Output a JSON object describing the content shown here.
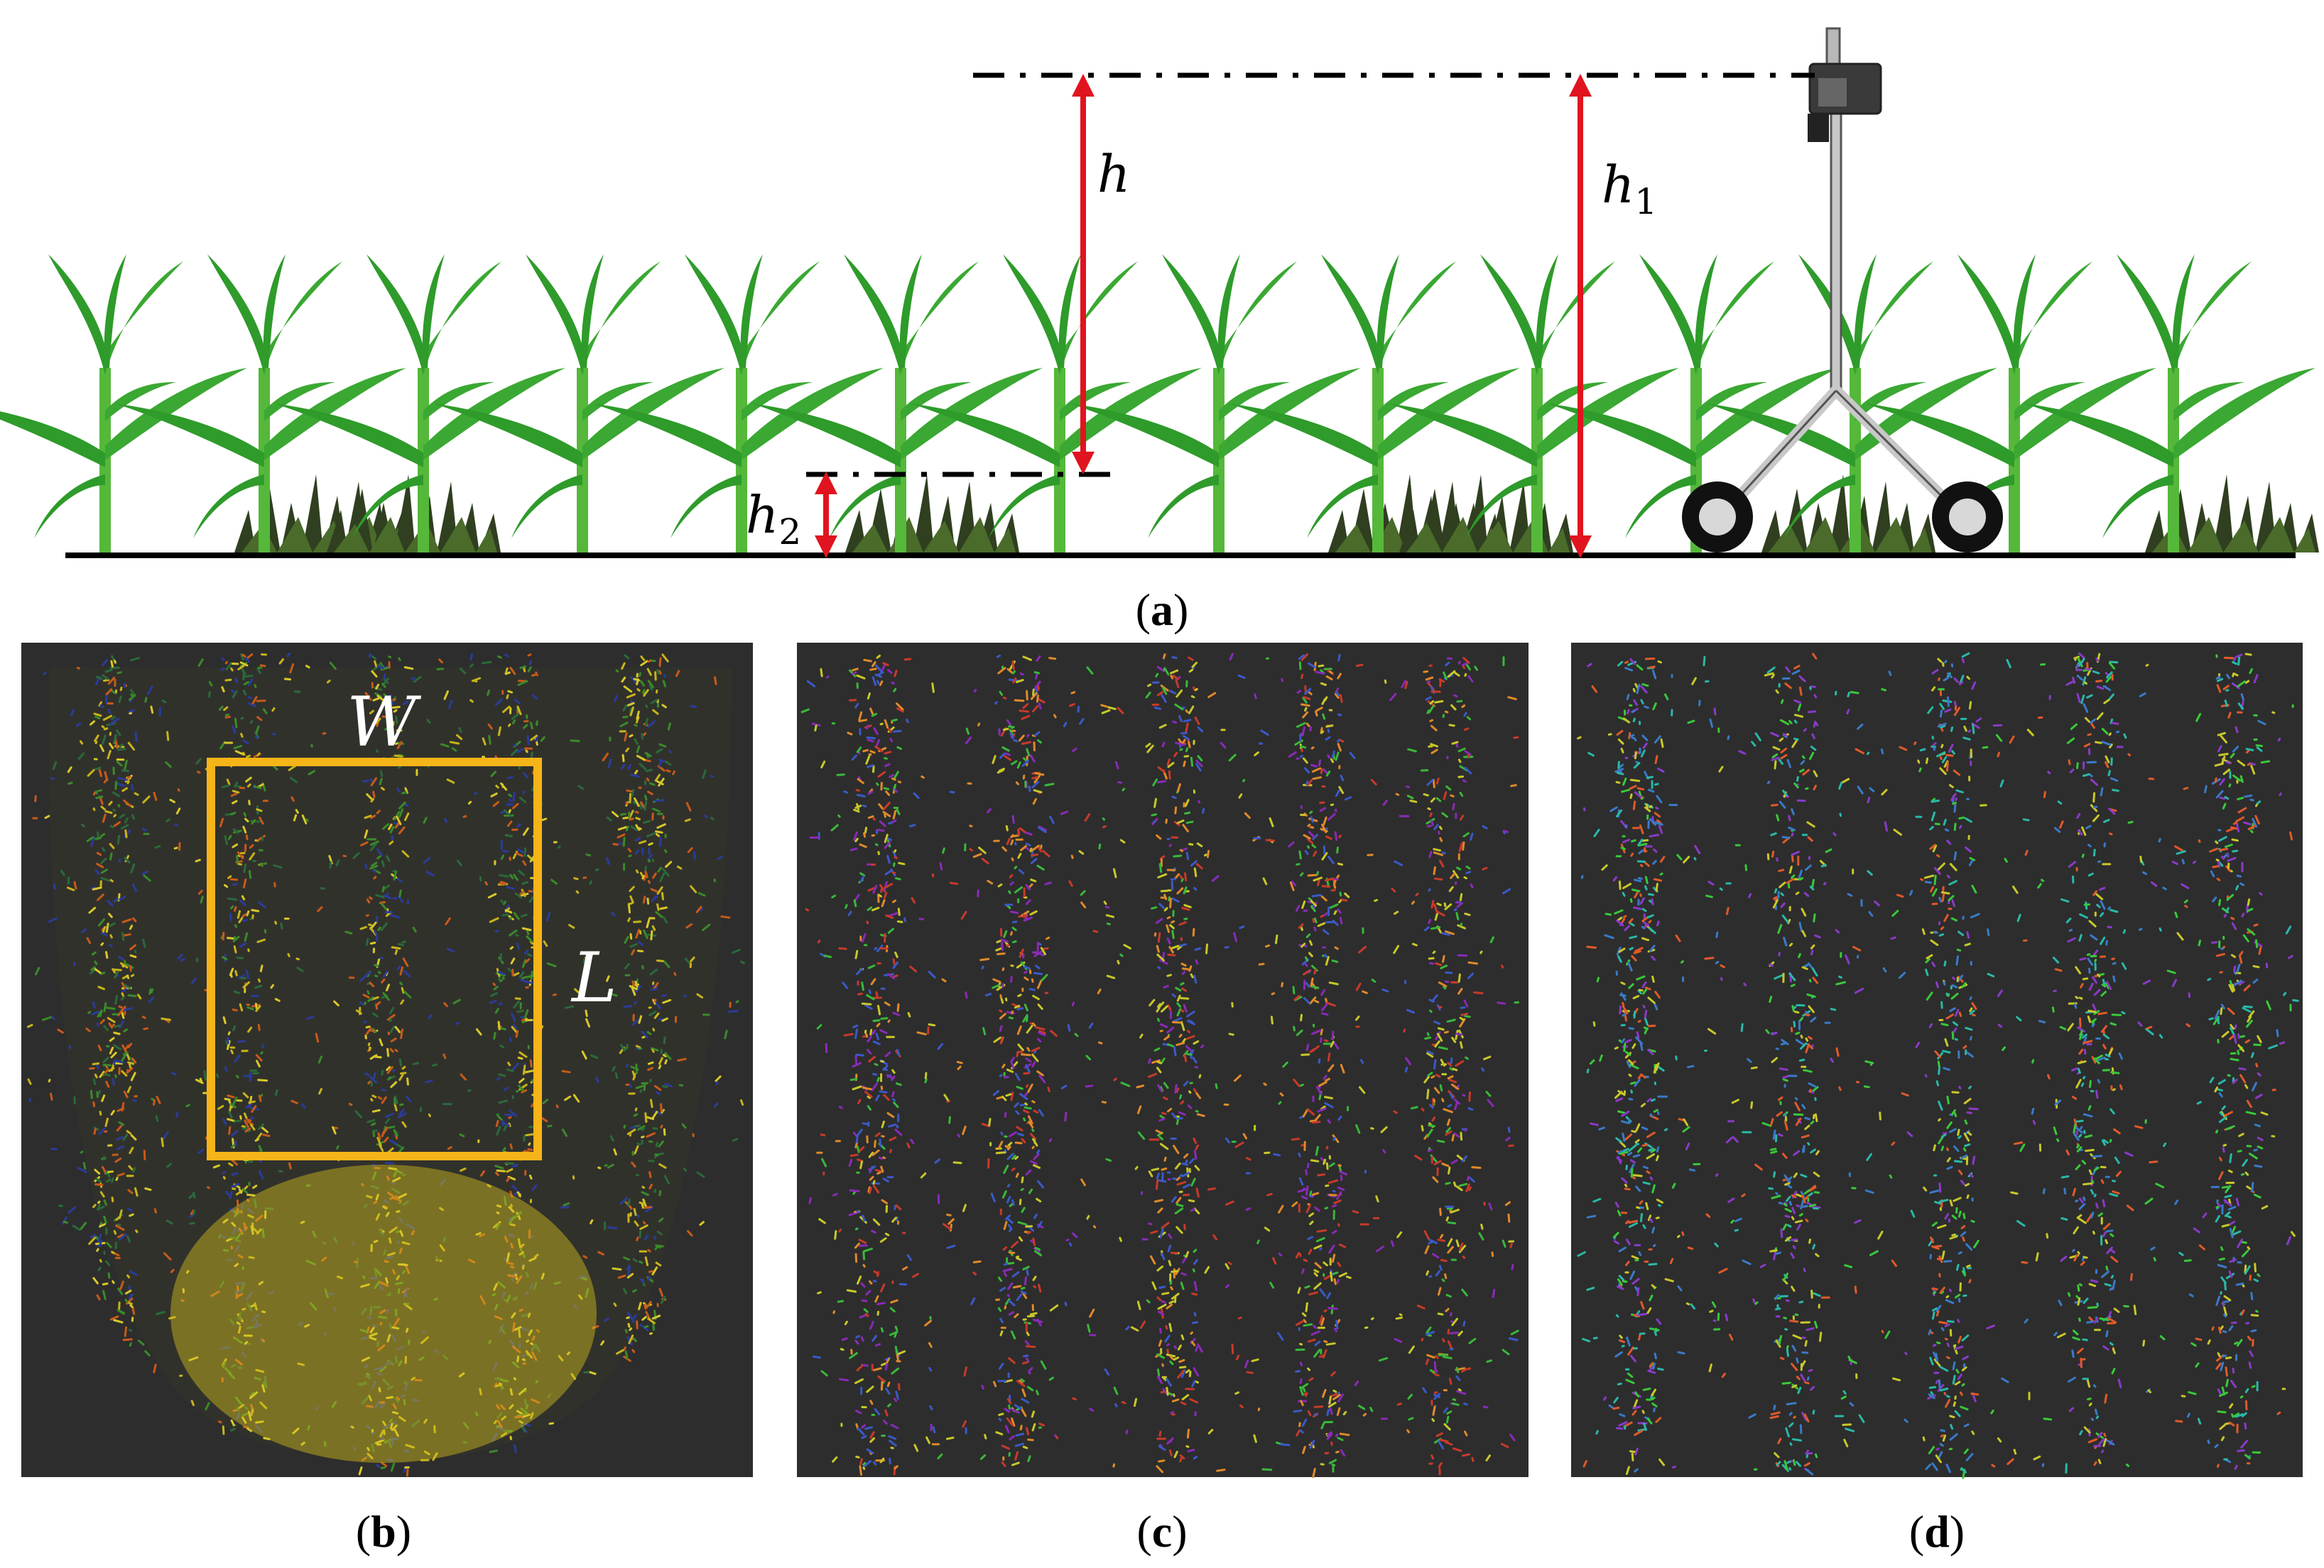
{
  "panels": {
    "a": {
      "caption_open": "(",
      "caption_letter": "a",
      "caption_close": ")",
      "labels": {
        "h": "h",
        "h1_base": "h",
        "h1_sub": "1",
        "h2_base": "h",
        "h2_sub": "2"
      }
    },
    "b": {
      "caption_open": "(",
      "caption_letter": "b",
      "caption_close": ")",
      "labels": {
        "width": "W",
        "length": "L"
      }
    },
    "c": {
      "caption_open": "(",
      "caption_letter": "c",
      "caption_close": ")"
    },
    "d": {
      "caption_open": "(",
      "caption_letter": "d",
      "caption_close": ")"
    }
  },
  "colors": {
    "ground": "#000000",
    "arrow": "#e0141e",
    "crop_leaf": "#2e9b2a",
    "crop_stem": "#55b83a",
    "weed": "#2f3f20",
    "pointcloud_bg": "#2d2d2d",
    "roi_box": "#f5b418",
    "sensor_frame": "#b8b8b8"
  },
  "icons": [
    "crop-plant-icon",
    "weed-clump-icon",
    "lidar-cart-icon"
  ]
}
